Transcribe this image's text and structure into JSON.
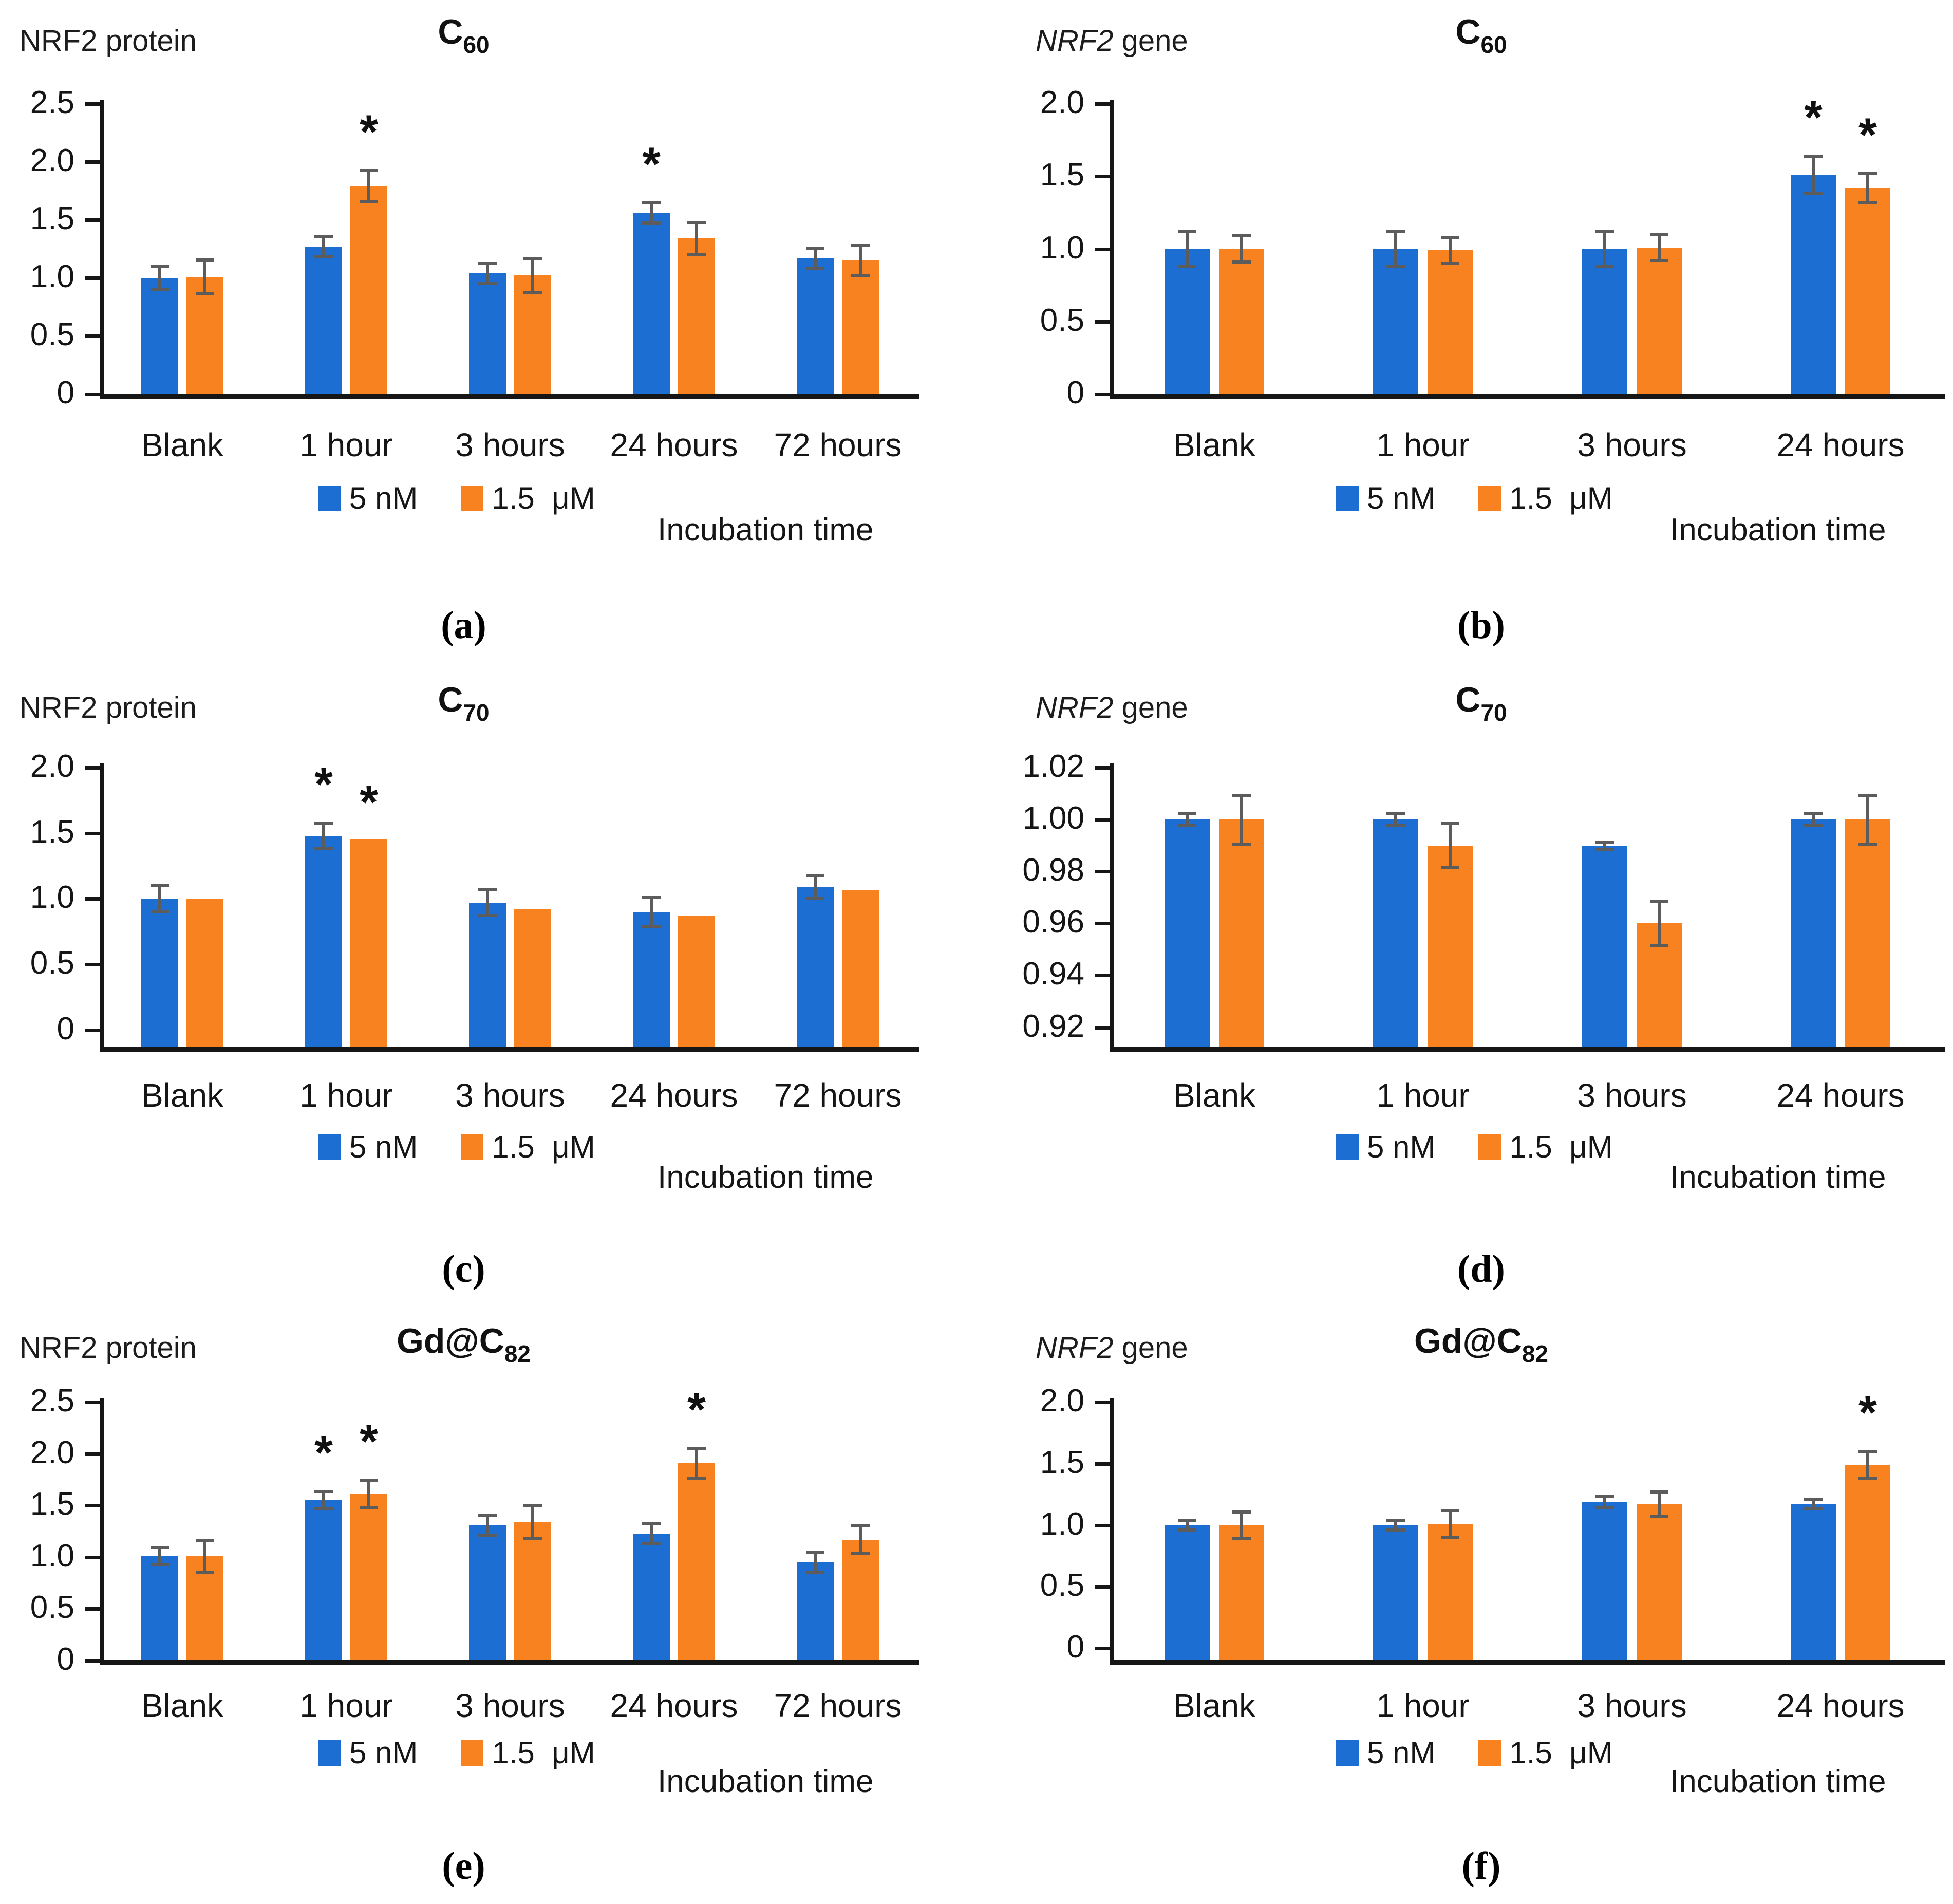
{
  "figure": {
    "background": "#ffffff",
    "series_colors": {
      "blue": "#1c6ed3",
      "orange": "#f98220"
    },
    "error_bar_color": "#5c5c5c",
    "axis_color": "#161616",
    "legend": [
      {
        "label": "5 nM",
        "color_key": "blue"
      },
      {
        "label": "1.5  μM",
        "color_key": "orange"
      }
    ],
    "xlabel": "Incubation time"
  },
  "chart_data": [
    {
      "id": "a",
      "type": "bar",
      "caption": "(a)",
      "ylabel_parts": [
        {
          "t": "NRF2 protein",
          "i": false
        }
      ],
      "title_base": "C",
      "title_sub": "60",
      "ylim": [
        0,
        2.5
      ],
      "yticks": [
        {
          "v": 2.5,
          "label": "2.5"
        },
        {
          "v": 2.0,
          "label": "2.0"
        },
        {
          "v": 1.5,
          "label": "1.5"
        },
        {
          "v": 1.0,
          "label": "1.0"
        },
        {
          "v": 0.5,
          "label": "0.5"
        },
        {
          "v": 0,
          "label": "0"
        }
      ],
      "categories": [
        "Blank",
        "1 hour",
        "3 hours",
        "24 hours",
        "72 hours"
      ],
      "series": [
        {
          "name": "5 nM",
          "color_key": "blue",
          "values": [
            1.0,
            1.27,
            1.04,
            1.56,
            1.17
          ],
          "errors": [
            0.11,
            0.1,
            0.1,
            0.1,
            0.1
          ],
          "asterisks": [
            false,
            false,
            false,
            true,
            false
          ]
        },
        {
          "name": "1.5 μM",
          "color_key": "orange",
          "values": [
            1.01,
            1.79,
            1.02,
            1.34,
            1.15
          ],
          "errors": [
            0.16,
            0.15,
            0.16,
            0.15,
            0.14
          ],
          "asterisks": [
            false,
            true,
            false,
            false,
            false
          ]
        }
      ]
    },
    {
      "id": "b",
      "type": "bar",
      "caption": "(b)",
      "ylabel_parts": [
        {
          "t": "NRF2",
          "i": true
        },
        {
          "t": " gene",
          "i": false
        }
      ],
      "title_base": "C",
      "title_sub": "60",
      "ylim": [
        0,
        2.0
      ],
      "yticks": [
        {
          "v": 2.0,
          "label": "2.0"
        },
        {
          "v": 1.5,
          "label": "1.5"
        },
        {
          "v": 1.0,
          "label": "1.0"
        },
        {
          "v": 0.5,
          "label": "0.5"
        },
        {
          "v": 0,
          "label": "0"
        }
      ],
      "categories": [
        "Blank",
        "1 hour",
        "3 hours",
        "24 hours"
      ],
      "series": [
        {
          "name": "5 nM",
          "color_key": "blue",
          "values": [
            1.0,
            1.0,
            1.0,
            1.51
          ],
          "errors": [
            0.13,
            0.13,
            0.13,
            0.14
          ],
          "asterisks": [
            false,
            false,
            false,
            true
          ]
        },
        {
          "name": "1.5 μM",
          "color_key": "orange",
          "values": [
            1.0,
            0.99,
            1.01,
            1.42
          ],
          "errors": [
            0.1,
            0.1,
            0.1,
            0.11
          ],
          "asterisks": [
            false,
            false,
            false,
            true
          ]
        }
      ]
    },
    {
      "id": "c",
      "type": "bar",
      "caption": "(c)",
      "ylabel_parts": [
        {
          "t": "NRF2 protein",
          "i": false
        }
      ],
      "title_base": "C",
      "title_sub": "70",
      "ylim": [
        -0.13,
        2.0
      ],
      "yticks": [
        {
          "v": 2.0,
          "label": "2.0"
        },
        {
          "v": 1.5,
          "label": "1.5"
        },
        {
          "v": 1.0,
          "label": "1.0"
        },
        {
          "v": 0.5,
          "label": "0.5"
        },
        {
          "v": 0,
          "label": "0"
        }
      ],
      "categories": [
        "Blank",
        "1 hour",
        "3 hours",
        "24 hours",
        "72 hours"
      ],
      "series": [
        {
          "name": "5 nM",
          "color_key": "blue",
          "values": [
            1.0,
            1.48,
            0.97,
            0.9,
            1.09
          ],
          "errors": [
            0.11,
            0.11,
            0.11,
            0.12,
            0.1
          ],
          "asterisks": [
            false,
            true,
            false,
            false,
            false
          ]
        },
        {
          "name": "1.5 μM",
          "color_key": "orange",
          "values": [
            1.0,
            1.45,
            0.92,
            0.87,
            1.07
          ],
          "errors": null,
          "asterisks": [
            false,
            true,
            false,
            false,
            false
          ]
        }
      ]
    },
    {
      "id": "d",
      "type": "bar",
      "caption": "(d)",
      "ylabel_parts": [
        {
          "t": "NRF2",
          "i": true
        },
        {
          "t": " gene",
          "i": false
        }
      ],
      "title_base": "C",
      "title_sub": "70",
      "ylim": [
        0.9124,
        1.02
      ],
      "yticks": [
        {
          "v": 1.02,
          "label": "1.02"
        },
        {
          "v": 1.0,
          "label": "1.00"
        },
        {
          "v": 0.98,
          "label": "0.98"
        },
        {
          "v": 0.96,
          "label": "0.96"
        },
        {
          "v": 0.94,
          "label": "0.94"
        },
        {
          "v": 0.92,
          "label": "0.92"
        }
      ],
      "categories": [
        "Blank",
        "1 hour",
        "3 hours",
        "24 hours"
      ],
      "series": [
        {
          "name": "5 nM",
          "color_key": "blue",
          "values": [
            1.0,
            1.0,
            0.99,
            1.0
          ],
          "errors": [
            0.003,
            0.003,
            0.002,
            0.003
          ],
          "asterisks": [
            false,
            false,
            false,
            false
          ]
        },
        {
          "name": "1.5 μM",
          "color_key": "orange",
          "values": [
            1.0,
            0.99,
            0.96,
            1.0
          ],
          "errors": [
            0.01,
            0.009,
            0.009,
            0.01
          ],
          "asterisks": [
            false,
            false,
            false,
            false
          ]
        }
      ]
    },
    {
      "id": "e",
      "type": "bar",
      "caption": "(e)",
      "ylabel_parts": [
        {
          "t": "NRF2 protein",
          "i": false
        }
      ],
      "title_base": "Gd@C",
      "title_sub": "82",
      "ylim": [
        0,
        2.5
      ],
      "yticks": [
        {
          "v": 2.5,
          "label": "2.5"
        },
        {
          "v": 2.0,
          "label": "2.0"
        },
        {
          "v": 1.5,
          "label": "1.5"
        },
        {
          "v": 1.0,
          "label": "1.0"
        },
        {
          "v": 0.5,
          "label": "0.5"
        },
        {
          "v": 0,
          "label": "0"
        }
      ],
      "categories": [
        "Blank",
        "1 hour",
        "3 hours",
        "24 hours",
        "72 hours"
      ],
      "series": [
        {
          "name": "5 nM",
          "color_key": "blue",
          "values": [
            1.01,
            1.55,
            1.31,
            1.23,
            0.95
          ],
          "errors": [
            0.1,
            0.1,
            0.11,
            0.11,
            0.11
          ],
          "asterisks": [
            false,
            true,
            false,
            false,
            false
          ]
        },
        {
          "name": "1.5 μM",
          "color_key": "orange",
          "values": [
            1.01,
            1.61,
            1.34,
            1.91,
            1.17
          ],
          "errors": [
            0.17,
            0.15,
            0.17,
            0.16,
            0.15
          ],
          "asterisks": [
            false,
            true,
            false,
            true,
            false
          ]
        }
      ]
    },
    {
      "id": "f",
      "type": "bar",
      "caption": "(f)",
      "ylabel_parts": [
        {
          "t": "NRF2",
          "i": true
        },
        {
          "t": " gene",
          "i": false
        }
      ],
      "title_base": "Gd@C",
      "title_sub": "82",
      "ylim": [
        -0.1,
        2.0
      ],
      "yticks": [
        {
          "v": 2.0,
          "label": "2.0"
        },
        {
          "v": 1.5,
          "label": "1.5"
        },
        {
          "v": 1.0,
          "label": "1.0"
        },
        {
          "v": 0.5,
          "label": "0.5"
        },
        {
          "v": 0,
          "label": "0"
        }
      ],
      "categories": [
        "Blank",
        "1 hour",
        "3 hours",
        "24 hours"
      ],
      "series": [
        {
          "name": "5 nM",
          "color_key": "blue",
          "values": [
            1.0,
            1.0,
            1.19,
            1.17
          ],
          "errors": [
            0.05,
            0.05,
            0.06,
            0.05
          ],
          "asterisks": [
            false,
            false,
            false,
            false
          ]
        },
        {
          "name": "1.5 μM",
          "color_key": "orange",
          "values": [
            1.0,
            1.01,
            1.17,
            1.49
          ],
          "errors": [
            0.12,
            0.12,
            0.11,
            0.12
          ],
          "asterisks": [
            false,
            false,
            false,
            true
          ]
        }
      ]
    }
  ]
}
